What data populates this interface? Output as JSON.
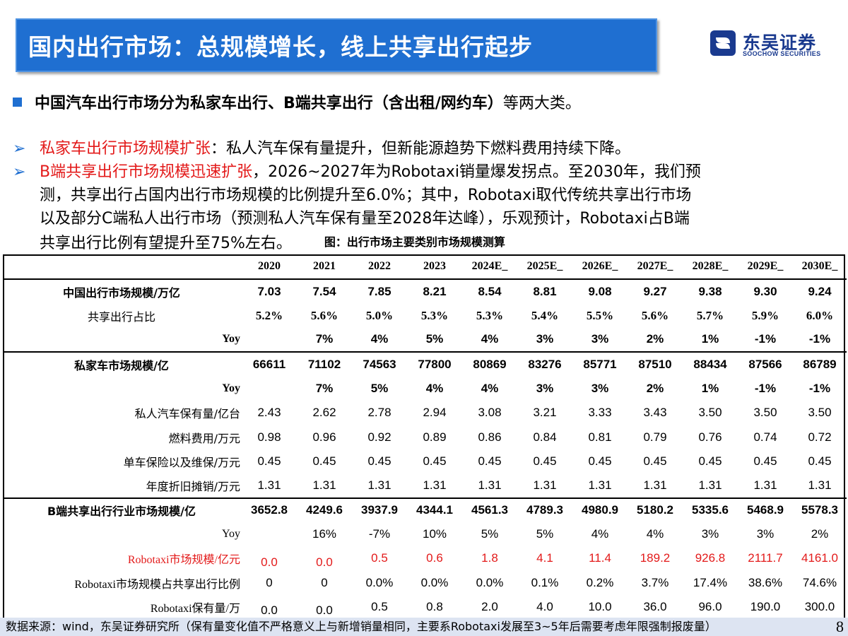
{
  "header": {
    "title": "国内出行市场：总规模增长，线上共享出行起步",
    "logo_cn": "东吴证券",
    "logo_en": "SOOCHOW SECURITIES"
  },
  "main_bullet": {
    "bold": "中国汽车出行市场分为私家车出行、B端共享出行（含出租/网约车）",
    "rest": "等两大类。"
  },
  "sub1": {
    "red": "私家车出行市场规模扩张",
    "text": "：私人汽车保有量提升，但新能源趋势下燃料费用持续下降。"
  },
  "sub2": {
    "red": "B端共享出行市场规模迅速扩张",
    "line1": "，2026~2027年为Robotaxi销量爆发拐点。至2030年，我们预",
    "line2": "测，共享出行占国内出行市场规模的比例提升至6.0%；其中，Robotaxi取代传统共享出行市场",
    "line3": "以及部分C端私人出行市场（预测私人汽车保有量至2028年达峰），乐观预计，Robotaxi占B端",
    "line4": "共享出行比例有望提升至75%左右。"
  },
  "figure_title": "图：出行市场主要类别市场规模测算",
  "table": {
    "headers": [
      "",
      "2020",
      "2021",
      "2022",
      "2023",
      "2024E_",
      "2025E_",
      "2026E_",
      "2027E_",
      "2028E_",
      "2029E_",
      "2030E_"
    ],
    "rows": [
      {
        "label": "中国出行市场规模/万亿",
        "values": [
          "7.03",
          "7.54",
          "7.85",
          "8.21",
          "8.54",
          "8.81",
          "9.08",
          "9.27",
          "9.38",
          "9.30",
          "9.24"
        ]
      },
      {
        "label": "共享出行占比",
        "values": [
          "5.2%",
          "5.6%",
          "5.0%",
          "5.3%",
          "5.3%",
          "5.4%",
          "5.5%",
          "5.6%",
          "5.7%",
          "5.9%",
          "6.0%"
        ]
      },
      {
        "label": "Yoy",
        "values": [
          "",
          "7%",
          "4%",
          "5%",
          "4%",
          "3%",
          "3%",
          "2%",
          "1%",
          "-1%",
          "-1%"
        ]
      },
      {
        "label": "私家车市场规模/亿",
        "values": [
          "66611",
          "71102",
          "74563",
          "77800",
          "80869",
          "83276",
          "85771",
          "87510",
          "88434",
          "87566",
          "86789"
        ]
      },
      {
        "label": "Yoy",
        "values": [
          "",
          "7%",
          "5%",
          "4%",
          "4%",
          "3%",
          "3%",
          "2%",
          "1%",
          "-1%",
          "-1%"
        ]
      },
      {
        "label": "私人汽车保有量/亿台",
        "values": [
          "2.43",
          "2.62",
          "2.78",
          "2.94",
          "3.08",
          "3.21",
          "3.33",
          "3.43",
          "3.50",
          "3.50",
          "3.50"
        ]
      },
      {
        "label": "燃料费用/万元",
        "values": [
          "0.98",
          "0.96",
          "0.92",
          "0.89",
          "0.86",
          "0.84",
          "0.81",
          "0.79",
          "0.76",
          "0.74",
          "0.72"
        ]
      },
      {
        "label": "单车保险以及维保/万元",
        "values": [
          "0.45",
          "0.45",
          "0.45",
          "0.45",
          "0.45",
          "0.45",
          "0.45",
          "0.45",
          "0.45",
          "0.45",
          "0.45"
        ]
      },
      {
        "label": "年度折旧摊销/万元",
        "values": [
          "1.31",
          "1.31",
          "1.31",
          "1.31",
          "1.31",
          "1.31",
          "1.31",
          "1.31",
          "1.31",
          "1.31",
          "1.31"
        ]
      },
      {
        "label": "B端共享出行行业市场规模/亿",
        "values": [
          "3652.8",
          "4249.6",
          "3937.9",
          "4344.1",
          "4561.3",
          "4789.3",
          "4980.9",
          "5180.2",
          "5335.6",
          "5468.9",
          "5578.3"
        ]
      },
      {
        "label": "Yoy",
        "values": [
          "",
          "16%",
          "-7%",
          "10%",
          "5%",
          "5%",
          "4%",
          "4%",
          "3%",
          "3%",
          "2%"
        ]
      },
      {
        "label": "Robotaxi市场规模/亿元",
        "values": [
          "0.0",
          "0.0",
          "0.5",
          "0.6",
          "1.8",
          "4.1",
          "11.4",
          "189.2",
          "926.8",
          "2111.7",
          "4161.0"
        ]
      },
      {
        "label": "Robotaxi市场规模占共享出行比例",
        "values": [
          "0",
          "0",
          "0.0%",
          "0.0%",
          "0.0%",
          "0.1%",
          "0.2%",
          "3.7%",
          "17.4%",
          "38.6%",
          "74.6%"
        ]
      },
      {
        "label": "Robotaxi保有量/万",
        "values": [
          "0.0",
          "0.0",
          "0.5",
          "0.8",
          "2.0",
          "4.0",
          "10.0",
          "36.0",
          "96.0",
          "190.0",
          "300.0"
        ]
      }
    ]
  },
  "footer": {
    "source": "数据来源：wind，东吴证券研究所（保有量变化值不严格意义上与新增销量相同，主要系Robotaxi发展至3~5年后需要考虑年限强制报废量）",
    "page": "8"
  },
  "colors": {
    "accent_blue": "#1f6fd1",
    "highlight_red": "#e31a1a",
    "logo_blue": "#1a3a8f",
    "footer_bg": "#dde4f2"
  }
}
